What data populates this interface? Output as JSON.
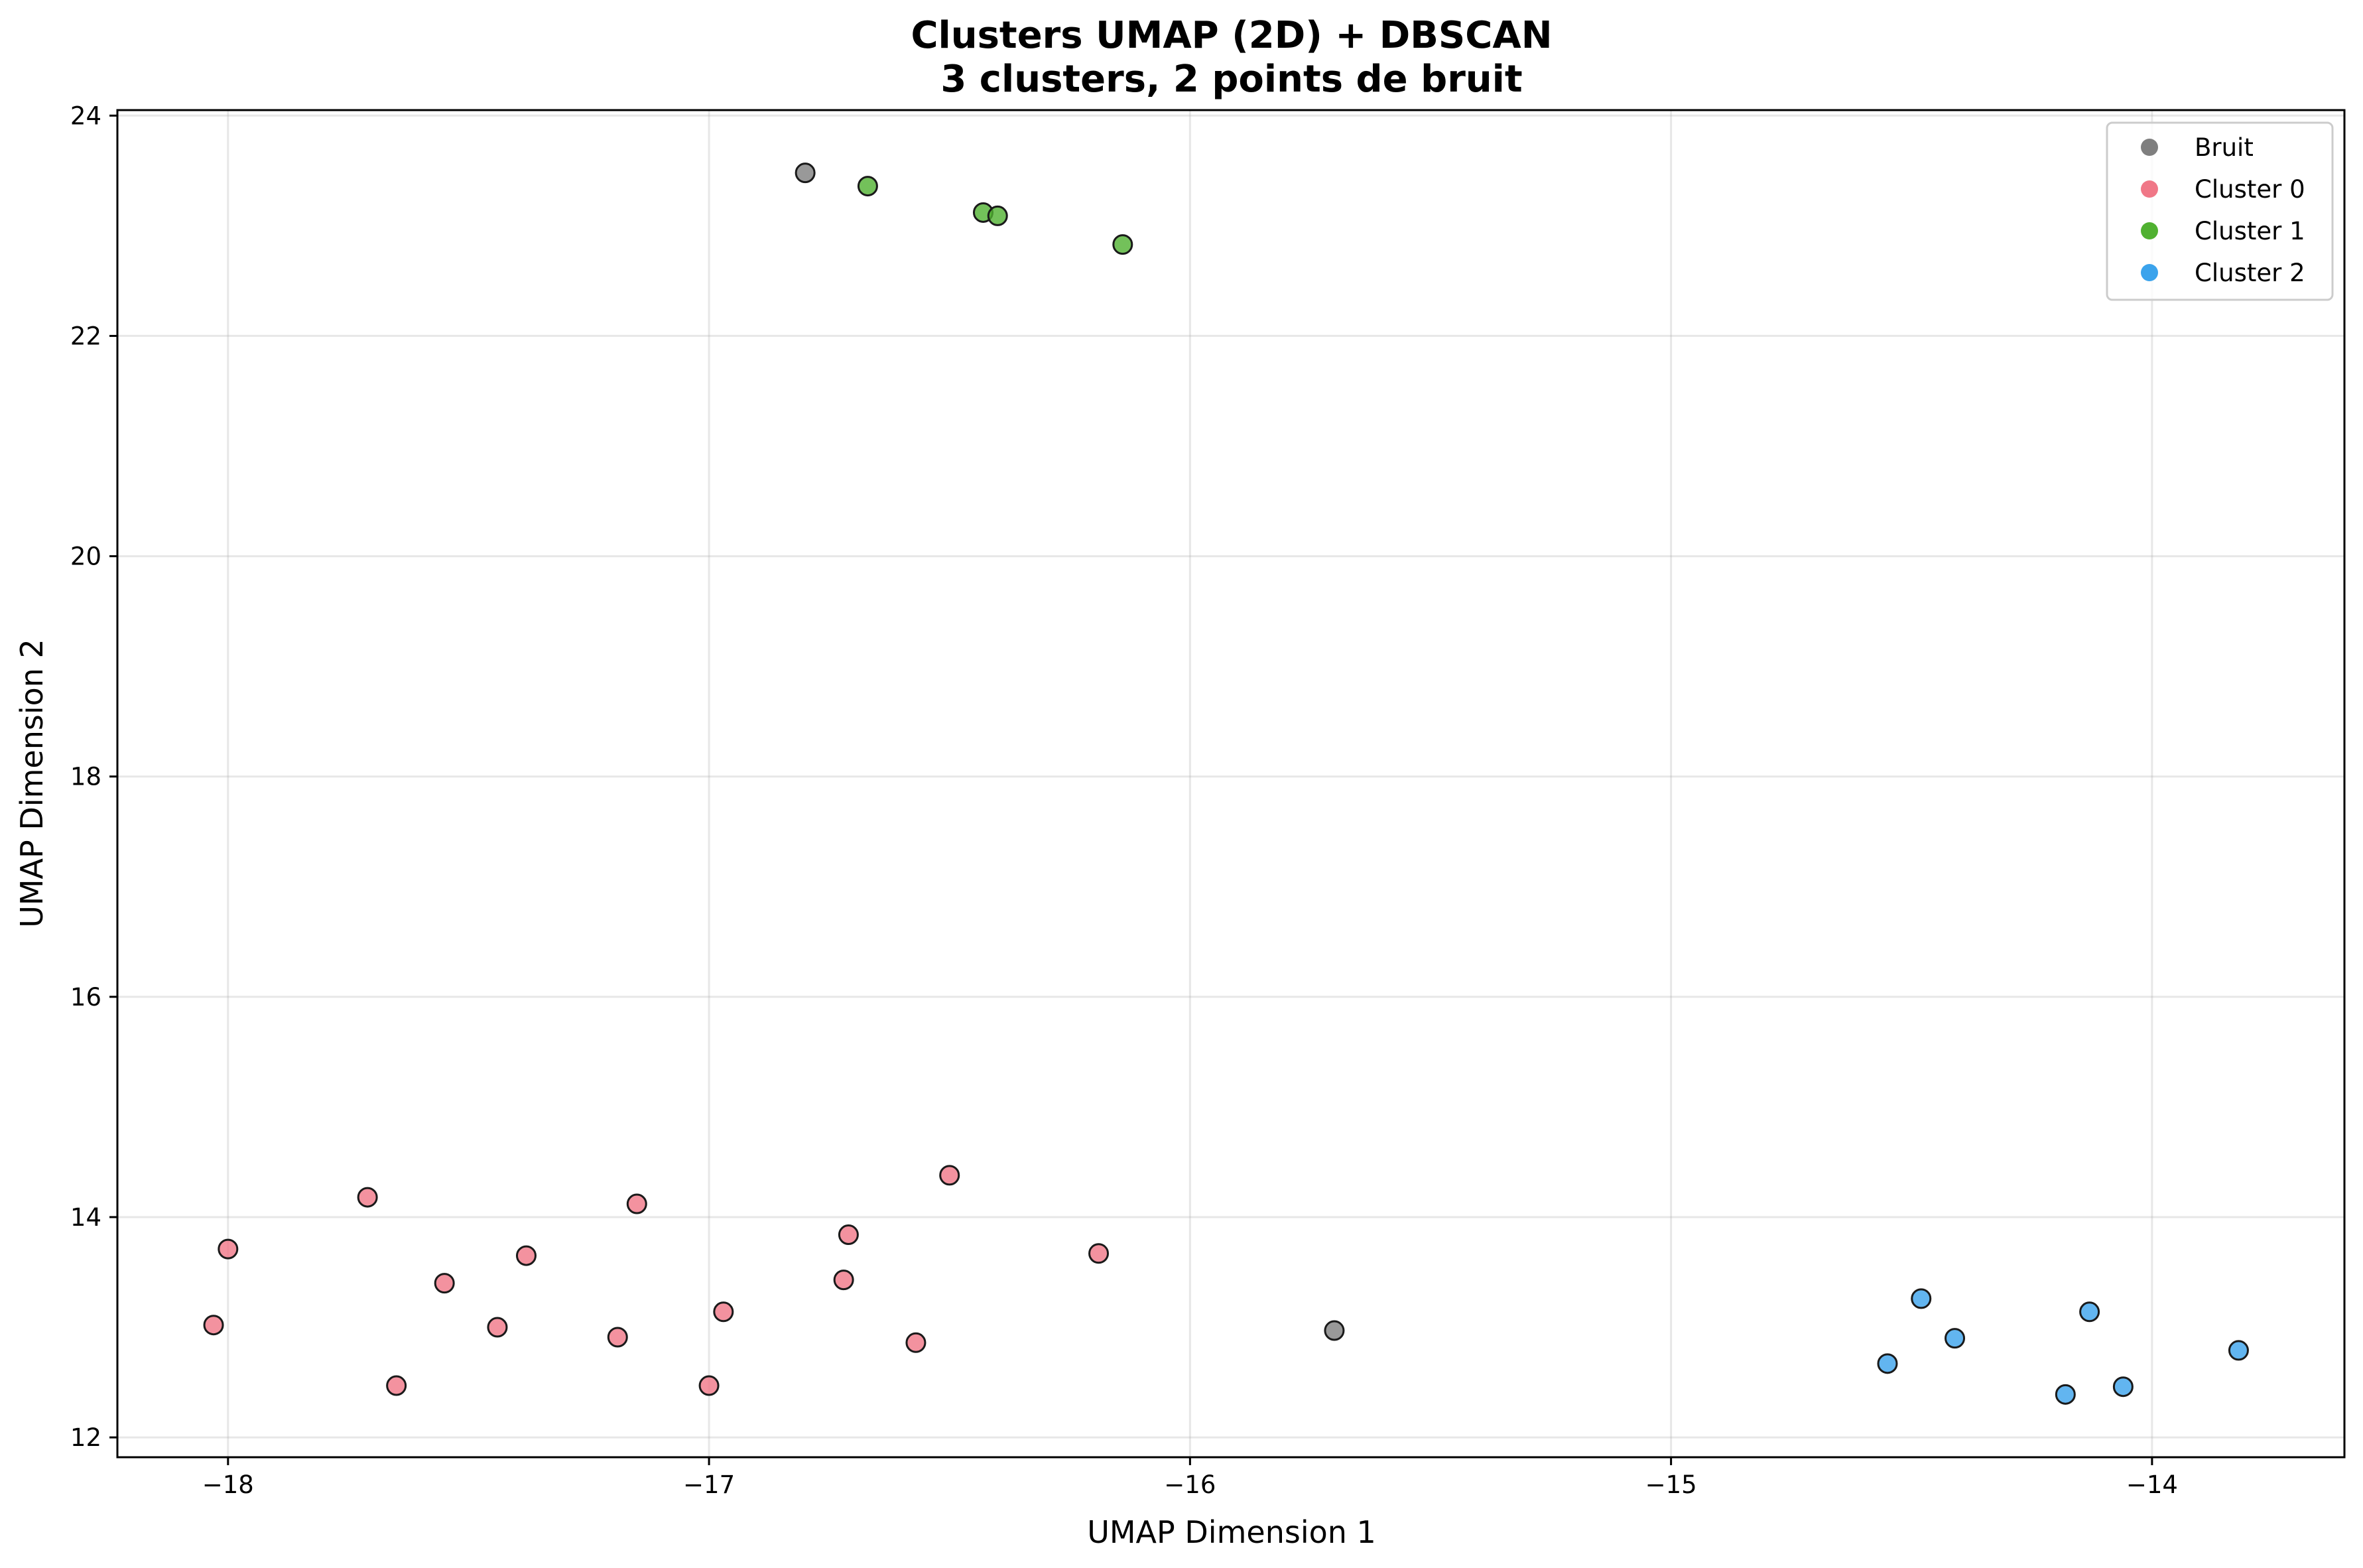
{
  "chart_data": {
    "type": "scatter",
    "title": "Clusters UMAP (2D) + DBSCAN",
    "subtitle": "3 clusters, 2 points de bruit",
    "xlabel": "UMAP Dimension 1",
    "ylabel": "UMAP Dimension 2",
    "xlim": [
      -18.23,
      -13.6
    ],
    "ylim": [
      11.82,
      24.05
    ],
    "xticks": [
      -18,
      -17,
      -16,
      -15,
      -14
    ],
    "xtick_labels": [
      "−18",
      "−17",
      "−16",
      "−15",
      "−14"
    ],
    "yticks": [
      12,
      14,
      16,
      18,
      20,
      22,
      24
    ],
    "ytick_labels": [
      "12",
      "14",
      "16",
      "18",
      "20",
      "22",
      "24"
    ],
    "grid": true,
    "legend_position": "top-right",
    "series": [
      {
        "name": "Bruit",
        "color": "#7f7f7f",
        "points": [
          [
            -16.8,
            23.48
          ],
          [
            -15.7,
            12.97
          ]
        ]
      },
      {
        "name": "Cluster 0",
        "color": "#f07787",
        "points": [
          [
            -18.03,
            13.02
          ],
          [
            -18.0,
            13.71
          ],
          [
            -17.71,
            14.18
          ],
          [
            -17.65,
            12.47
          ],
          [
            -17.55,
            13.4
          ],
          [
            -17.44,
            13.0
          ],
          [
            -17.38,
            13.65
          ],
          [
            -17.19,
            12.91
          ],
          [
            -17.15,
            14.12
          ],
          [
            -17.0,
            12.47
          ],
          [
            -16.97,
            13.14
          ],
          [
            -16.72,
            13.43
          ],
          [
            -16.71,
            13.84
          ],
          [
            -16.57,
            12.86
          ],
          [
            -16.5,
            14.38
          ],
          [
            -16.19,
            13.67
          ]
        ]
      },
      {
        "name": "Cluster 1",
        "color": "#50b131",
        "points": [
          [
            -16.67,
            23.36
          ],
          [
            -16.43,
            23.12
          ],
          [
            -16.4,
            23.09
          ],
          [
            -16.14,
            22.83
          ]
        ]
      },
      {
        "name": "Cluster 2",
        "color": "#3ba3ec",
        "points": [
          [
            -14.55,
            12.67
          ],
          [
            -14.48,
            13.26
          ],
          [
            -14.41,
            12.9
          ],
          [
            -14.18,
            12.39
          ],
          [
            -14.13,
            13.14
          ],
          [
            -14.06,
            12.46
          ],
          [
            -13.82,
            12.79
          ]
        ]
      }
    ]
  }
}
